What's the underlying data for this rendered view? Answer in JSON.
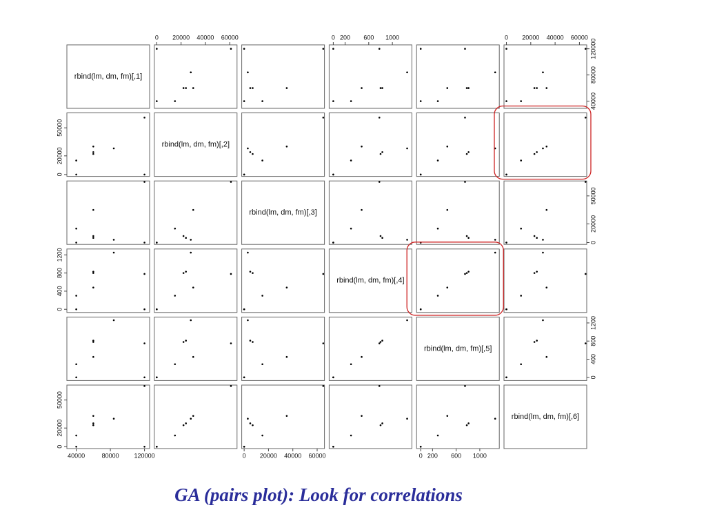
{
  "chart_data": {
    "type": "pairs",
    "caption": "GA (pairs plot): Look for correlations",
    "variables": [
      {
        "name": "rbind(lm, dm, fm)[,1]",
        "values": [
          120000,
          120000,
          40000,
          40000,
          60000,
          60000,
          60000,
          84000
        ],
        "lim": [
          29000,
          126000
        ],
        "xticks": [
          40000,
          80000,
          120000
        ],
        "yticks": [
          40000,
          80000,
          120000
        ]
      },
      {
        "name": "rbind(lm, dm, fm)[,2]",
        "values": [
          0,
          61000,
          0,
          15000,
          22000,
          24000,
          30000,
          28000
        ],
        "lim": [
          -2000,
          66000
        ],
        "xticks": [
          0,
          20000,
          40000,
          60000
        ],
        "yticks": [
          0,
          20000,
          50000
        ]
      },
      {
        "name": "rbind(lm, dm, fm)[,3]",
        "values": [
          0,
          65000,
          0,
          15000,
          7000,
          5000,
          35000,
          3000
        ],
        "lim": [
          -2000,
          66000
        ],
        "xticks": [
          0,
          20000,
          40000,
          60000
        ],
        "yticks": [
          0,
          20000,
          50000
        ]
      },
      {
        "name": "rbind(lm, dm, fm)[,4]",
        "values": [
          0,
          780,
          0,
          300,
          800,
          830,
          480,
          1250
        ],
        "lim": [
          -70,
          1330
        ],
        "xticks": [
          0,
          200,
          600,
          1000
        ],
        "yticks": [
          0,
          400,
          800,
          1200
        ]
      },
      {
        "name": "rbind(lm, dm, fm)[,5]",
        "values": [
          0,
          750,
          0,
          290,
          780,
          810,
          450,
          1260
        ],
        "lim": [
          -70,
          1330
        ],
        "xticks": [
          0,
          200,
          600,
          1000
        ],
        "yticks": [
          0,
          400,
          800,
          1200
        ]
      },
      {
        "name": "rbind(lm, dm, fm)[,6]",
        "values": [
          0,
          65000,
          0,
          12000,
          23000,
          25000,
          33000,
          30000
        ],
        "lim": [
          -2000,
          66000
        ],
        "xticks": [
          0,
          20000,
          40000,
          60000
        ],
        "yticks": [
          0,
          20000,
          50000
        ]
      }
    ]
  }
}
